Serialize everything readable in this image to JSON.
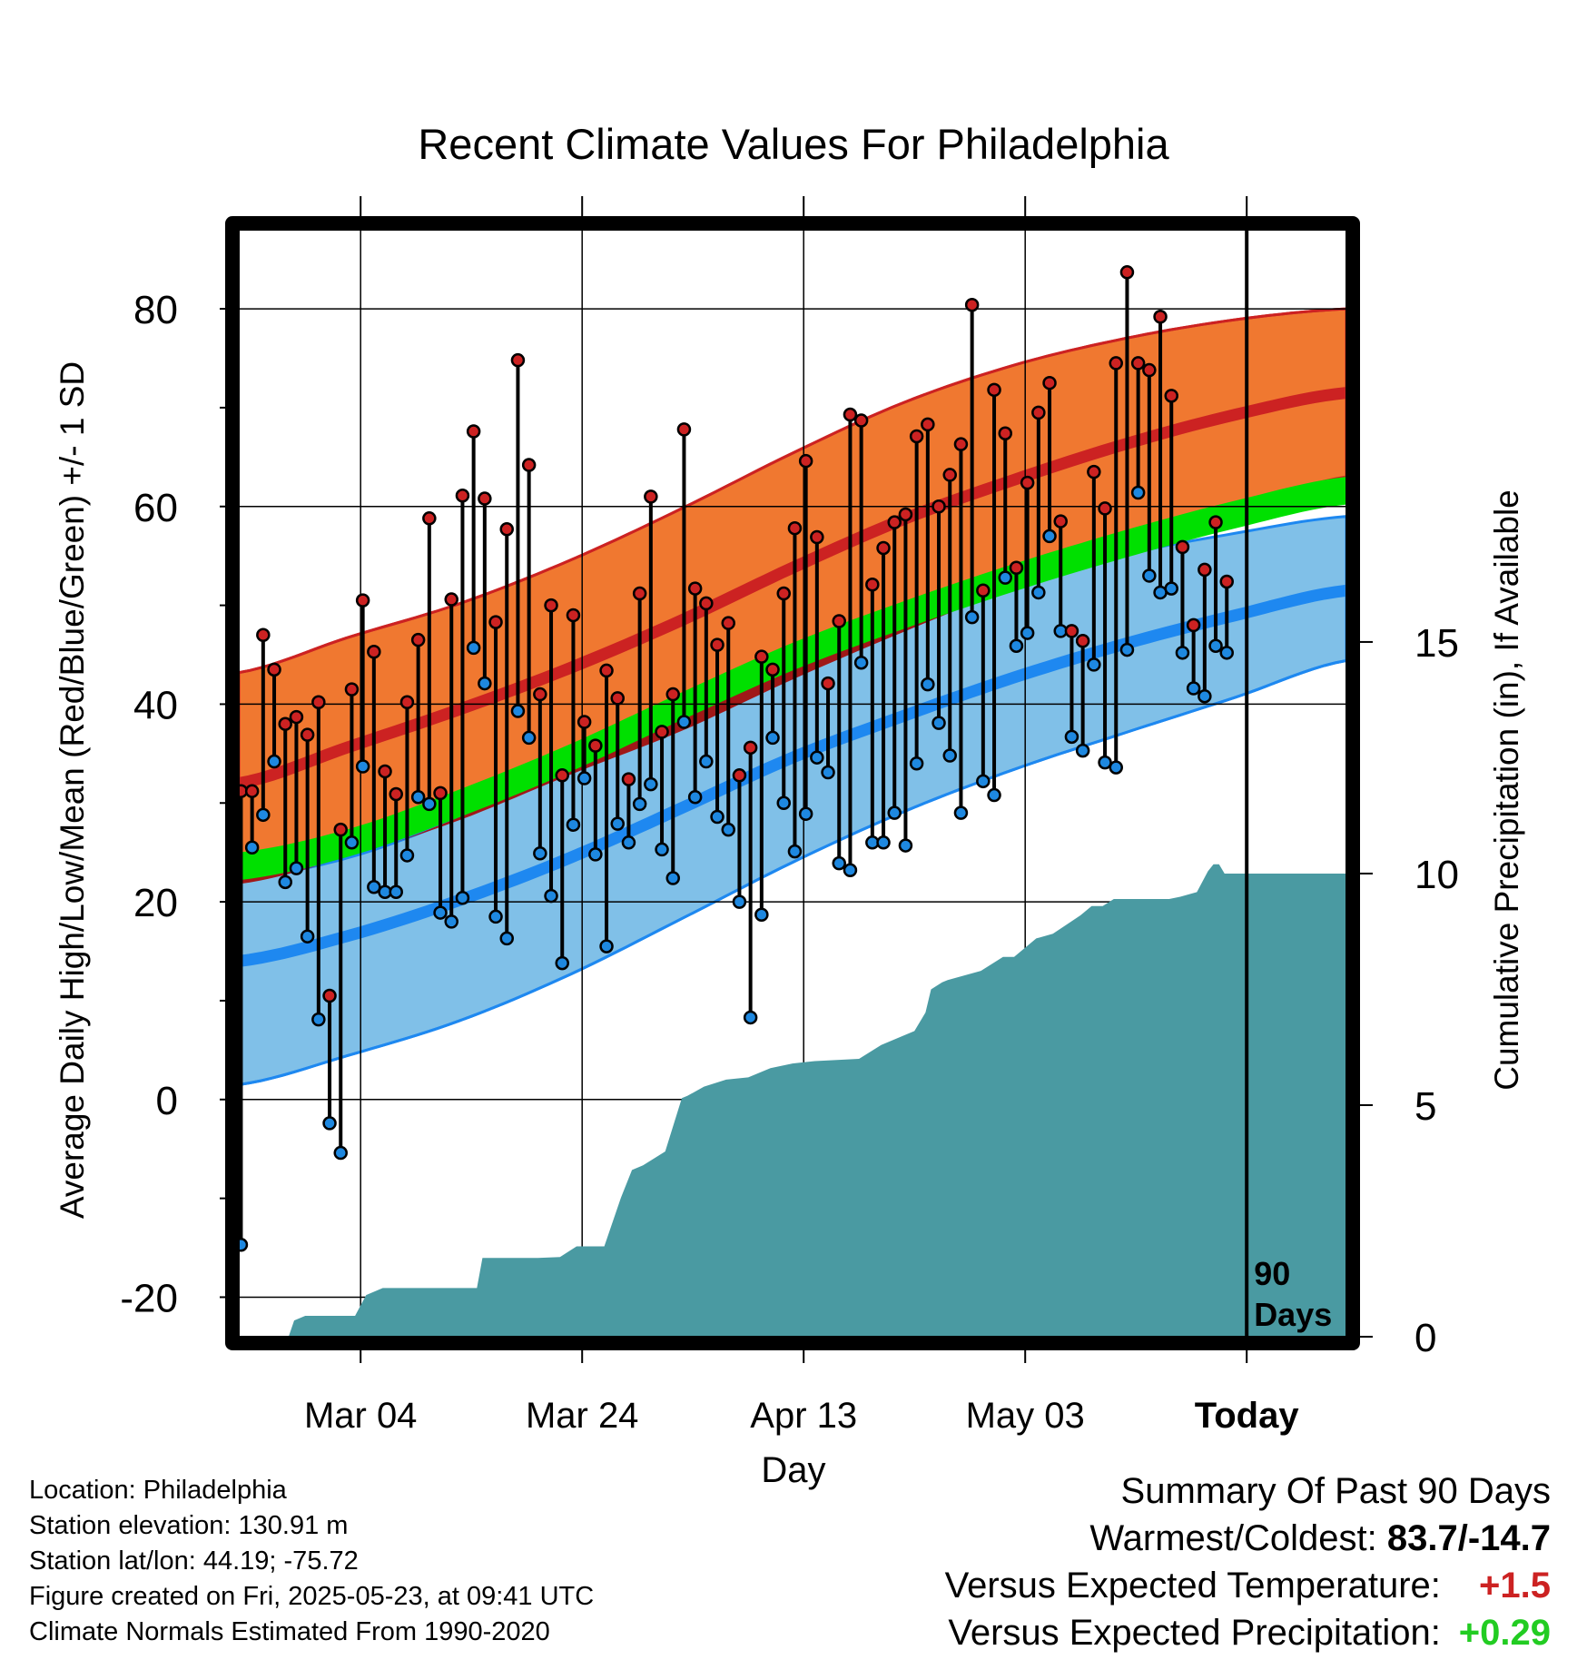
{
  "chart_data": {
    "type": "line",
    "title": "Recent Climate Values For Philadelphia",
    "xlabel": "Day",
    "ylabel_left": "Average Daily High/Low/Mean (Red/Blue/Green) +/- 1 SD",
    "ylabel_right": "Cumulative Precipitation (in), If Available",
    "x_tick_labels": [
      "Mar 04",
      "Mar 24",
      "Apr 13",
      "May 03",
      "Today"
    ],
    "x_tick_days": [
      11,
      31,
      51,
      71,
      91
    ],
    "xlim_days": [
      0,
      100
    ],
    "ylim_temp": [
      -24,
      88
    ],
    "y_ticks_temp": [
      -20,
      0,
      20,
      40,
      60,
      80
    ],
    "y_ticks_precip": [
      0,
      5,
      10,
      15
    ],
    "ylim_precip": [
      0,
      23.9
    ],
    "today_marker_label": [
      "90",
      "Days"
    ],
    "grid": true,
    "normals": {
      "day": [
        0,
        10,
        20,
        30,
        40,
        50,
        60,
        70,
        80,
        90,
        100
      ],
      "high_mean": [
        32.0,
        35.7,
        39.5,
        43.7,
        48.5,
        53.8,
        58.7,
        62.7,
        66.3,
        69.3,
        71.5
      ],
      "high_sd_upper": [
        43.2,
        46.8,
        50.2,
        54.6,
        59.8,
        65.4,
        70.5,
        74.3,
        77.0,
        78.9,
        80.0
      ],
      "high_sd_lower": [
        21.8,
        24.6,
        28.3,
        32.9,
        37.3,
        42.5,
        47.3,
        51.8,
        55.8,
        59.7,
        63.0
      ],
      "mean_mean": [
        23.6,
        26.0,
        30.0,
        34.6,
        39.8,
        44.8,
        49.0,
        52.8,
        56.2,
        59.2,
        61.6
      ],
      "low_mean": [
        14.0,
        16.6,
        20.2,
        24.5,
        29.5,
        34.6,
        38.8,
        42.7,
        46.1,
        49.0,
        51.5
      ],
      "low_sd_upper": [
        22.3,
        24.5,
        28.6,
        33.6,
        38.6,
        43.8,
        48.0,
        51.7,
        55.1,
        57.3,
        59.0
      ],
      "low_sd_lower": [
        1.5,
        4.5,
        8.0,
        12.7,
        18.3,
        24.0,
        29.1,
        33.4,
        37.1,
        40.7,
        44.4
      ]
    },
    "daily": {
      "day_start": 0.2,
      "day_step": 1,
      "high": [
        31.2,
        31.2,
        47.0,
        43.5,
        38.0,
        38.7,
        36.9,
        40.2,
        10.5,
        27.3,
        41.5,
        50.5,
        45.3,
        33.2,
        30.9,
        40.2,
        46.5,
        58.8,
        31.0,
        50.6,
        61.1,
        67.6,
        60.8,
        48.3,
        57.7,
        74.8,
        64.2,
        41.0,
        50.0,
        32.8,
        49.0,
        38.2,
        35.8,
        43.4,
        40.6,
        32.4,
        51.2,
        61.0,
        37.2,
        41.0,
        67.8,
        51.7,
        50.2,
        46.0,
        48.2,
        32.8,
        35.6,
        44.8,
        43.5,
        51.2,
        57.8,
        64.6,
        56.9,
        42.1,
        48.4,
        69.3,
        68.7,
        52.1,
        55.8,
        58.4,
        59.2,
        67.1,
        68.3,
        60.0,
        63.2,
        66.3,
        80.4,
        51.5,
        71.8,
        67.4,
        53.8,
        62.4,
        69.5,
        72.5,
        58.5,
        47.4,
        46.4,
        63.5,
        59.8,
        74.5,
        83.7,
        74.5,
        73.8,
        79.2,
        71.2,
        55.9,
        48.0,
        53.6,
        58.4,
        52.4
      ],
      "low": [
        -14.7,
        25.5,
        28.8,
        34.2,
        22.0,
        23.4,
        16.5,
        8.1,
        -2.4,
        -5.4,
        26.0,
        33.7,
        21.5,
        21.0,
        21.0,
        24.7,
        30.6,
        29.9,
        18.9,
        18.0,
        20.4,
        45.7,
        42.1,
        18.5,
        16.3,
        39.3,
        36.6,
        24.9,
        20.6,
        13.8,
        27.8,
        32.5,
        24.8,
        15.5,
        27.9,
        26.0,
        29.9,
        31.9,
        25.3,
        22.4,
        38.2,
        30.6,
        34.2,
        28.6,
        27.3,
        20.0,
        8.3,
        18.7,
        36.6,
        30.0,
        25.1,
        28.9,
        34.6,
        33.1,
        23.9,
        23.2,
        44.2,
        26.0,
        26.0,
        29.0,
        25.7,
        34.0,
        42.0,
        38.1,
        34.8,
        29.0,
        48.8,
        32.2,
        30.8,
        52.8,
        45.9,
        47.2,
        51.3,
        57.0,
        47.4,
        36.7,
        35.3,
        44.0,
        34.1,
        33.6,
        45.5,
        61.4,
        53.0,
        51.3,
        51.7,
        45.2,
        41.6,
        40.8,
        45.9,
        45.2
      ]
    },
    "precip_cumulative": {
      "day": [
        0,
        4.5,
        5.0,
        6.0,
        10.5,
        11.5,
        13.0,
        21.5,
        22.0,
        24.0,
        27.0,
        29.0,
        30.5,
        33.0,
        34.5,
        35.5,
        36.5,
        38.5,
        40.0,
        40.5,
        42.0,
        44.0,
        46.0,
        48.0,
        50.0,
        52.0,
        56.0,
        58.0,
        61.0,
        62.0,
        62.5,
        63.5,
        64.0,
        67.0,
        69.0,
        70.0,
        72.0,
        73.5,
        76.0,
        77.0,
        78.0,
        79.0,
        80.0,
        81.0,
        84.0,
        85.0,
        86.5,
        87.5,
        88.0,
        88.5,
        89.0,
        100.0
      ],
      "value": [
        0.0,
        0.0,
        0.35,
        0.45,
        0.45,
        0.9,
        1.05,
        1.05,
        1.7,
        1.7,
        1.7,
        1.72,
        1.95,
        1.95,
        3.0,
        3.6,
        3.7,
        4.0,
        5.15,
        5.2,
        5.4,
        5.55,
        5.6,
        5.8,
        5.9,
        5.95,
        6.0,
        6.3,
        6.6,
        7.0,
        7.5,
        7.65,
        7.7,
        7.9,
        8.2,
        8.2,
        8.6,
        8.7,
        9.1,
        9.3,
        9.3,
        9.45,
        9.45,
        9.45,
        9.45,
        9.5,
        9.6,
        10.05,
        10.2,
        10.2,
        10.0,
        10.0
      ]
    }
  },
  "location_info": {
    "location": "Location: Philadelphia",
    "elevation": "Station elevation: 130.91 m",
    "latlon": "Station lat/lon: 44.19; -75.72",
    "created": "Figure created on Fri, 2025-05-23, at 09:41 UTC",
    "normals_period": "Climate Normals Estimated From 1990-2020"
  },
  "summary": {
    "heading": "Summary Of Past 90 Days",
    "warm_cold_label": "Warmest/Coldest:",
    "warm_cold_value": "83.7/-14.7",
    "temp_label": "Versus Expected Temperature:",
    "temp_value": "+1.5",
    "temp_color": "#cc2222",
    "precip_label": "Versus Expected Precipitation:",
    "precip_value": "+0.29",
    "precip_color": "#22cc22"
  },
  "colors": {
    "high_band": "#f07830",
    "high_line": "#cc2222",
    "low_band": "#80c0e8",
    "low_line": "#1e88f0",
    "mean_band": "#00e000",
    "overlap_band": "#a01818",
    "precip_fill": "#4a9aa2",
    "high_dot": "#cc2222",
    "low_dot": "#1e88e0"
  }
}
